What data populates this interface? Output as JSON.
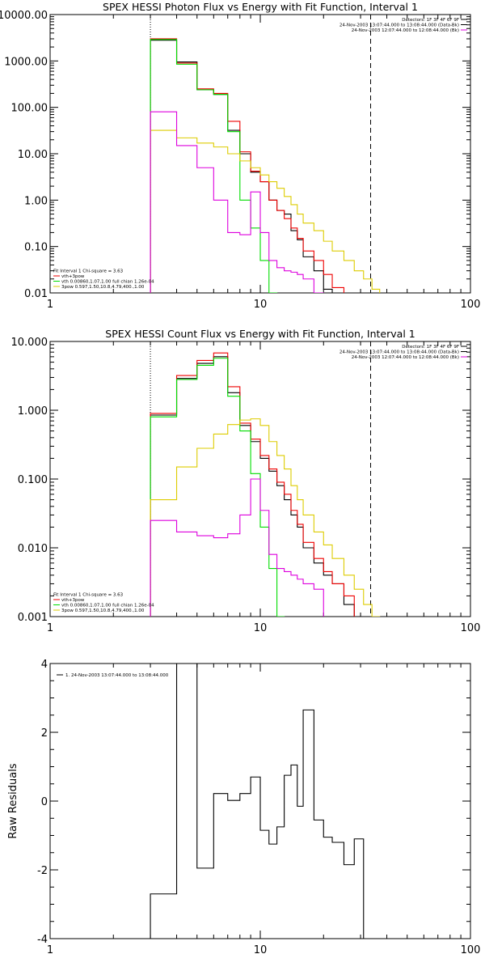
{
  "chart_data": [
    {
      "type": "line",
      "title": "SPEX HESSI Photon Flux vs Energy with Fit Function, Interval 1",
      "xscale": "log",
      "yscale": "log",
      "xlim": [
        1,
        100
      ],
      "ylim": [
        0.01,
        10000
      ],
      "xticks": [
        "1",
        "10",
        "100"
      ],
      "yticks": [
        "0.01",
        "0.10",
        "1.00",
        "10.00",
        "100.00",
        "1000.00",
        "10000.00"
      ],
      "vlines": {
        "dotted": 3,
        "dashed": 33.5
      },
      "header_lines": [
        "Detectors: 1F 3F 4F 6F 9F",
        "24-Nov-2003 13:07:44.000 to 13:08:44.000 (Data-Bk)",
        "24-Nov-2003 12:07:44.000 to 12:08:44.000 (Bk)"
      ],
      "header_colors": [
        "#000000",
        "#000000",
        "#dd00dd"
      ],
      "legend_lines": [
        "Fit Interval 1   Chi-square = 3.63",
        "vth+3pow",
        "vth 0.00860,1.07,1.00  full chian 1.26e-04",
        "3pow 0.597,1.50,10.8,4.79,400.,1.00"
      ],
      "legend_colors": [
        "#000000",
        "#ee0000",
        "#00dd00",
        "#ddcc00"
      ],
      "edges": [
        3,
        4,
        5,
        6,
        7,
        8,
        9,
        10,
        11,
        12,
        13,
        14,
        15,
        16,
        18,
        20,
        22,
        25,
        28,
        31,
        34,
        37,
        40,
        45,
        50
      ],
      "series": [
        {
          "color": "#000000",
          "values": [
            2800,
            950,
            240,
            190,
            32,
            10,
            4,
            2.5,
            1,
            0.6,
            0.5,
            0.22,
            0.14,
            0.06,
            0.03,
            0.012,
            0.008
          ]
        },
        {
          "color": "#ee0000",
          "values": [
            3000,
            900,
            250,
            200,
            50,
            11,
            4.2,
            2.5,
            1,
            0.6,
            0.4,
            0.25,
            0.15,
            0.08,
            0.05,
            0.025,
            0.013
          ]
        },
        {
          "color": "#00dd00",
          "values": [
            2900,
            850,
            240,
            190,
            30,
            1,
            0.25,
            0.05,
            0.01
          ]
        },
        {
          "color": "#ddcc00",
          "values": [
            32,
            22,
            17,
            14,
            10,
            7,
            5,
            3.5,
            2.5,
            1.8,
            1.2,
            0.8,
            0.5,
            0.32,
            0.22,
            0.13,
            0.08,
            0.05,
            0.03,
            0.02,
            0.012
          ]
        },
        {
          "color": "#dd00dd",
          "values": [
            80,
            15,
            5,
            1,
            0.2,
            0.18,
            1.5,
            0.2,
            0.05,
            0.035,
            0.03,
            0.028,
            0.025,
            0.02,
            0.01
          ]
        }
      ]
    },
    {
      "type": "line",
      "title": "SPEX HESSI Count Flux vs Energy with Fit Function, Interval 1",
      "xscale": "log",
      "yscale": "log",
      "xlim": [
        1,
        100
      ],
      "ylim": [
        0.001,
        10
      ],
      "xticks": [
        "1",
        "10",
        "100"
      ],
      "yticks": [
        "0.001",
        "0.010",
        "0.100",
        "1.000",
        "10.000"
      ],
      "vlines": {
        "dotted": 3,
        "dashed": 33.5
      },
      "header_lines": [
        "Detectors: 1F 3F 4F 6F 9F",
        "24-Nov-2003 13:07:44.000 to 13:08:44.000 (Data-Bk)",
        "24-Nov-2003 12:07:44.000 to 12:08:44.000 (Bk)"
      ],
      "header_colors": [
        "#000000",
        "#000000",
        "#dd00dd"
      ],
      "legend_lines": [
        "Fit Interval 1   Chi-square = 3.63",
        "vth+3pow",
        "vth 0.00860,1.07,1.00  full chian 1.26e-04",
        "3pow 0.597,1.50,10.8,4.79,400.,1.00"
      ],
      "legend_colors": [
        "#000000",
        "#ee0000",
        "#00dd00",
        "#ddcc00"
      ],
      "edges": [
        3,
        4,
        5,
        6,
        7,
        8,
        9,
        10,
        11,
        12,
        13,
        14,
        15,
        16,
        18,
        20,
        22,
        25,
        28,
        31,
        34,
        37,
        40,
        45,
        50
      ],
      "series": [
        {
          "color": "#000000",
          "values": [
            0.85,
            2.9,
            4.8,
            6.0,
            1.8,
            0.6,
            0.35,
            0.2,
            0.13,
            0.08,
            0.05,
            0.03,
            0.02,
            0.01,
            0.006,
            0.004,
            0.003,
            0.0015
          ]
        },
        {
          "color": "#ee0000",
          "values": [
            0.9,
            3.2,
            5.3,
            6.8,
            2.2,
            0.65,
            0.38,
            0.22,
            0.14,
            0.09,
            0.06,
            0.035,
            0.022,
            0.012,
            0.007,
            0.0045,
            0.003,
            0.002
          ]
        },
        {
          "color": "#00dd00",
          "values": [
            0.8,
            2.8,
            4.5,
            5.7,
            1.6,
            0.5,
            0.12,
            0.02,
            0.005,
            0.001
          ]
        },
        {
          "color": "#ddcc00",
          "values": [
            0.05,
            0.15,
            0.28,
            0.45,
            0.62,
            0.72,
            0.75,
            0.6,
            0.35,
            0.22,
            0.14,
            0.08,
            0.05,
            0.03,
            0.017,
            0.011,
            0.007,
            0.004,
            0.0025,
            0.0015,
            0.001
          ]
        },
        {
          "color": "#dd00dd",
          "values": [
            0.025,
            0.017,
            0.015,
            0.014,
            0.016,
            0.03,
            0.1,
            0.035,
            0.008,
            0.005,
            0.0045,
            0.004,
            0.0035,
            0.003,
            0.0025
          ]
        }
      ]
    },
    {
      "type": "line",
      "title": "",
      "xscale": "log",
      "yscale": "linear",
      "xlim": [
        1,
        100
      ],
      "ylim": [
        -4,
        4
      ],
      "xticks": [
        "1",
        "10",
        "100"
      ],
      "yticks": [
        "-4",
        "-2",
        "0",
        "2",
        "4"
      ],
      "ylabel": "Raw Residuals",
      "legend_lines": [
        "1. 24-Nov-2003 13:07:44.000 to 13:08:44.000"
      ],
      "legend_colors": [
        "#000000"
      ],
      "edges": [
        3,
        4,
        5,
        6,
        7,
        8,
        9,
        10,
        11,
        12,
        13,
        14,
        15,
        16,
        18,
        20,
        22,
        25,
        28,
        31,
        34
      ],
      "series": [
        {
          "color": "#000000",
          "values": [
            -2.7,
            4.0,
            -1.95,
            0.22,
            0.02,
            0.22,
            0.7,
            -0.85,
            -1.25,
            -0.75,
            0.75,
            1.05,
            -0.15,
            2.65,
            -0.55,
            -1.05,
            -1.2,
            -1.85,
            -1.1
          ]
        }
      ]
    }
  ]
}
